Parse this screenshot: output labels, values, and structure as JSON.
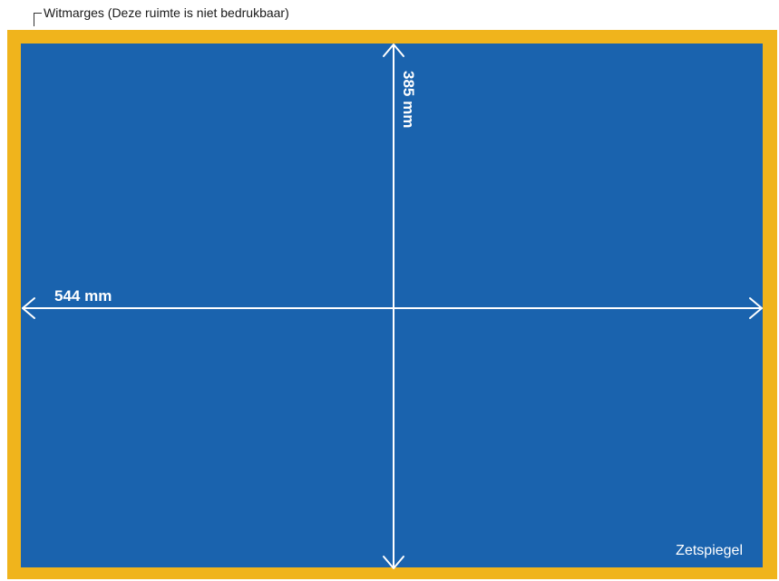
{
  "labels": {
    "margin_note": "Witmarges (Deze ruimte is niet bedrukbaar)",
    "height_dim": "385 mm",
    "width_dim": "544 mm",
    "type_area": "Zetspiegel"
  },
  "colors": {
    "margin": "#F0B41C",
    "type_area": "#1A63AE",
    "arrows": "#FFFFFF"
  }
}
